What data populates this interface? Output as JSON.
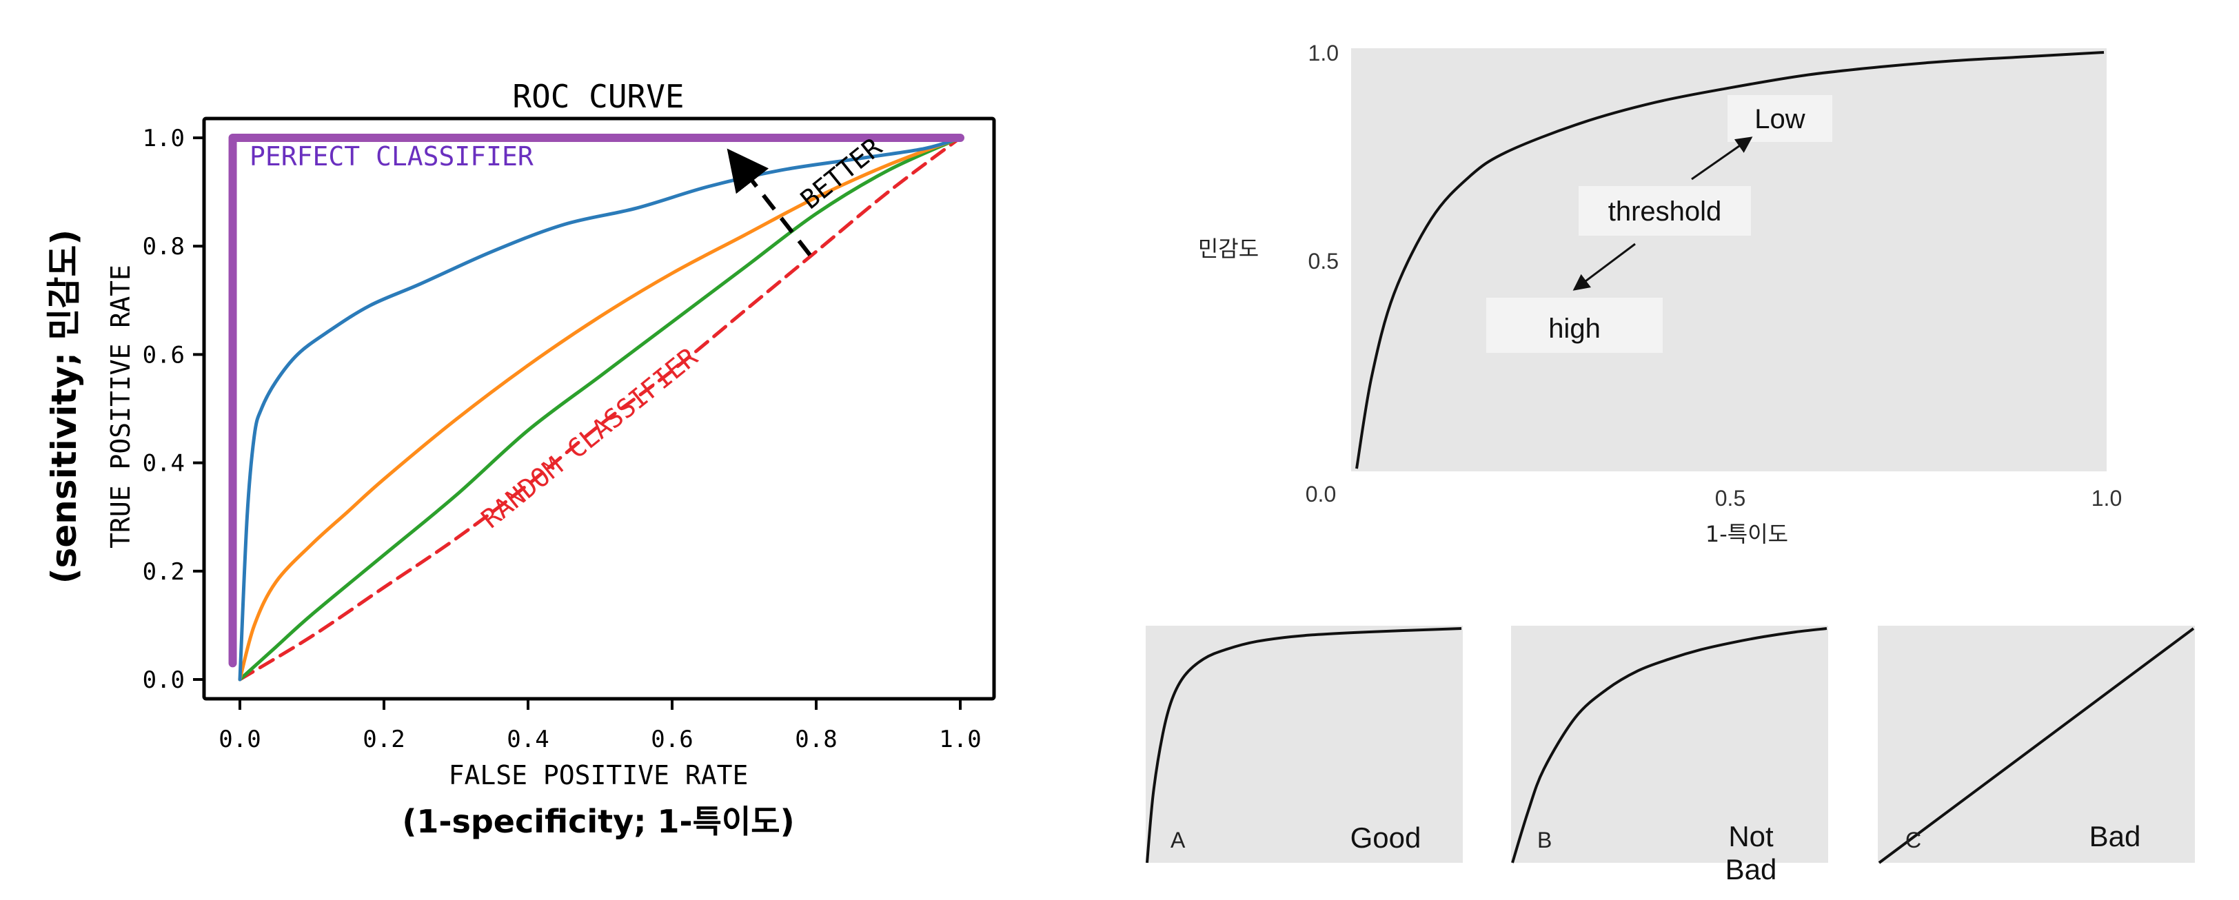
{
  "chart_data": [
    {
      "type": "line",
      "title": "ROC CURVE",
      "xlabel": "FALSE POSITIVE RATE",
      "ylabel": "TRUE POSITIVE RATE",
      "xlabel_note": "(1-specificity; 1-특이도)",
      "ylabel_note": "(sensitivity; 민감도)",
      "xlim": [
        -0.05,
        1.05
      ],
      "ylim": [
        -0.03,
        1.05
      ],
      "xticks": [
        "0.0",
        "0.2",
        "0.4",
        "0.6",
        "0.8",
        "1.0"
      ],
      "yticks": [
        "0.0",
        "0.2",
        "0.4",
        "0.6",
        "0.8",
        "1.0"
      ],
      "grid": false,
      "annotations": {
        "perfect": "PERFECT CLASSIFIER",
        "random": "RANDOM CLASSIFIER",
        "better": "BETTER"
      },
      "colors": {
        "perfect": "#9b4fb0",
        "random": "#e8262b",
        "blue": "#2b7bb9",
        "orange": "#ff8c1a",
        "green": "#2ca02c"
      },
      "series": [
        {
          "key": "perfect",
          "x": [
            -0.01,
            -0.01,
            1.0
          ],
          "y": [
            0.03,
            1.0,
            1.0
          ]
        },
        {
          "key": "random",
          "x": [
            0.0,
            0.1,
            0.2,
            0.3,
            0.4,
            0.5,
            0.6,
            0.7,
            0.8,
            0.9,
            1.0
          ],
          "y": [
            0.0,
            0.08,
            0.17,
            0.26,
            0.36,
            0.47,
            0.57,
            0.68,
            0.79,
            0.9,
            1.0
          ]
        },
        {
          "key": "blue",
          "x": [
            0.0,
            0.01,
            0.02,
            0.03,
            0.05,
            0.08,
            0.12,
            0.18,
            0.25,
            0.35,
            0.45,
            0.55,
            0.65,
            0.75,
            0.85,
            0.95,
            1.0
          ],
          "y": [
            0.0,
            0.3,
            0.45,
            0.5,
            0.55,
            0.6,
            0.64,
            0.69,
            0.73,
            0.79,
            0.84,
            0.87,
            0.91,
            0.94,
            0.96,
            0.98,
            1.0
          ]
        },
        {
          "key": "orange",
          "x": [
            0.0,
            0.02,
            0.05,
            0.1,
            0.15,
            0.2,
            0.3,
            0.4,
            0.5,
            0.6,
            0.7,
            0.8,
            0.9,
            1.0
          ],
          "y": [
            0.0,
            0.1,
            0.18,
            0.25,
            0.31,
            0.37,
            0.48,
            0.58,
            0.67,
            0.75,
            0.82,
            0.89,
            0.95,
            1.0
          ]
        },
        {
          "key": "green",
          "x": [
            0.0,
            0.05,
            0.1,
            0.2,
            0.3,
            0.4,
            0.5,
            0.6,
            0.7,
            0.8,
            0.9,
            1.0
          ],
          "y": [
            0.0,
            0.06,
            0.12,
            0.23,
            0.34,
            0.46,
            0.56,
            0.66,
            0.76,
            0.86,
            0.94,
            1.0
          ]
        }
      ]
    },
    {
      "type": "line",
      "xlabel": "1-특이도",
      "ylabel": "민감도",
      "xlim": [
        0,
        1
      ],
      "ylim": [
        0,
        1
      ],
      "xticks": [
        "0.0",
        "0.5",
        "1.0"
      ],
      "yticks": [
        "0.5",
        "1.0"
      ],
      "background": "#e6e6e6",
      "labels": {
        "low": "Low",
        "threshold": "threshold",
        "high": "high"
      },
      "series": [
        {
          "x": [
            0.0,
            0.02,
            0.05,
            0.1,
            0.15,
            0.2,
            0.3,
            0.4,
            0.5,
            0.6,
            0.7,
            0.8,
            0.9,
            1.0
          ],
          "y": [
            0.0,
            0.22,
            0.42,
            0.6,
            0.7,
            0.76,
            0.83,
            0.88,
            0.915,
            0.945,
            0.965,
            0.98,
            0.99,
            1.0
          ]
        }
      ]
    },
    {
      "type": "line",
      "panel": "A",
      "label": "Good",
      "series": [
        {
          "x": [
            0.0,
            0.02,
            0.05,
            0.08,
            0.12,
            0.18,
            0.25,
            0.35,
            0.5,
            0.7,
            1.0
          ],
          "y": [
            0.0,
            0.3,
            0.55,
            0.7,
            0.8,
            0.87,
            0.91,
            0.945,
            0.97,
            0.985,
            1.0
          ]
        }
      ]
    },
    {
      "type": "line",
      "panel": "B",
      "label": "Not\nBad",
      "series": [
        {
          "x": [
            0.0,
            0.05,
            0.1,
            0.2,
            0.3,
            0.4,
            0.5,
            0.6,
            0.7,
            0.8,
            0.9,
            1.0
          ],
          "y": [
            0.0,
            0.22,
            0.4,
            0.62,
            0.74,
            0.82,
            0.87,
            0.91,
            0.94,
            0.965,
            0.985,
            1.0
          ]
        }
      ]
    },
    {
      "type": "line",
      "panel": "C",
      "label": "Bad",
      "series": [
        {
          "x": [
            0.0,
            1.0
          ],
          "y": [
            0.0,
            1.0
          ]
        }
      ]
    }
  ]
}
